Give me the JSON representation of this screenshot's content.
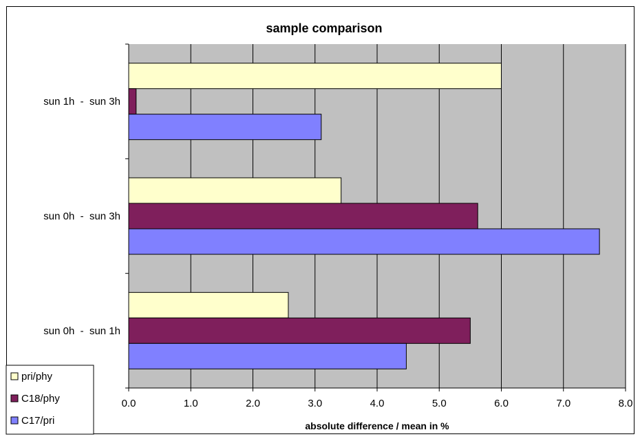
{
  "chart_data": {
    "type": "bar",
    "orientation": "horizontal",
    "title": "sample comparison",
    "xlabel": "absolute difference / mean in %",
    "ylabel": "",
    "xlim": [
      0,
      8
    ],
    "xticks": [
      0,
      1,
      2,
      3,
      4,
      5,
      6,
      7,
      8
    ],
    "xtick_labels": [
      "0.0",
      "1.0",
      "2.0",
      "3.0",
      "4.0",
      "5.0",
      "6.0",
      "7.0",
      "8.0"
    ],
    "categories": [
      "sun 1h  -  sun 3h",
      "sun 0h  -  sun 3h",
      "sun 0h  -  sun 1h"
    ],
    "series": [
      {
        "name": "pri/phy",
        "color": "#FFFFCC",
        "values": [
          6.0,
          3.42,
          2.57
        ]
      },
      {
        "name": "C18/phy",
        "color": "#7F1F5C",
        "values": [
          0.12,
          5.62,
          5.5
        ]
      },
      {
        "name": "C17/pri",
        "color": "#8080FF",
        "values": [
          3.1,
          7.58,
          4.47
        ]
      }
    ],
    "legend_order": [
      "pri/phy",
      "C18/phy",
      "C17/pri"
    ],
    "legend_position": "bottom-left",
    "grid": true,
    "plot_background": "#C0C0C0"
  }
}
